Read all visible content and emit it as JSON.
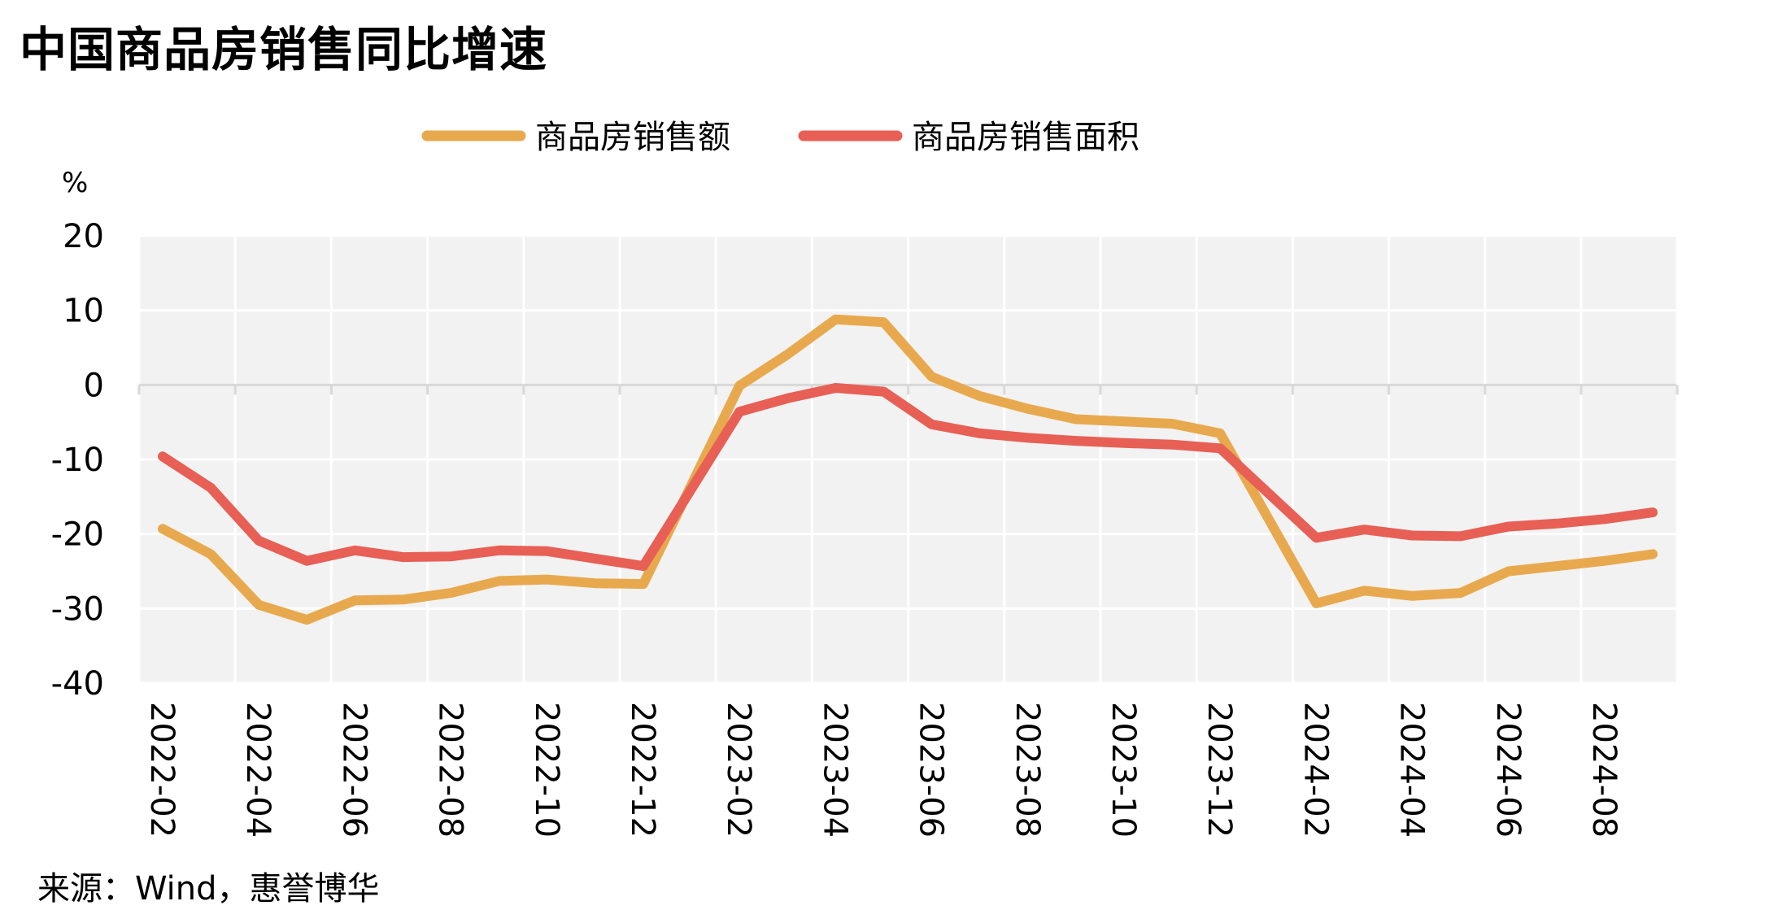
{
  "title": "中国商品房销售同比增速",
  "source": "来源：Wind，惠誉博华",
  "chart_data": {
    "type": "line",
    "unit_label": "%",
    "ylim": [
      -40,
      20
    ],
    "yticks": [
      20,
      10,
      0,
      -10,
      -20,
      -30,
      -40
    ],
    "x_tick_labels": [
      "2022-02",
      "2022-04",
      "2022-06",
      "2022-08",
      "2022-10",
      "2022-12",
      "2023-02",
      "2023-04",
      "2023-06",
      "2023-08",
      "2023-10",
      "2023-12",
      "2024-02",
      "2024-04",
      "2024-06",
      "2024-08"
    ],
    "x": [
      "2022-02",
      "2022-03",
      "2022-04",
      "2022-05",
      "2022-06",
      "2022-07",
      "2022-08",
      "2022-09",
      "2022-10",
      "2022-11",
      "2022-12",
      "2023-02",
      "2023-03",
      "2023-04",
      "2023-05",
      "2023-06",
      "2023-07",
      "2023-08",
      "2023-09",
      "2023-10",
      "2023-11",
      "2023-12",
      "2024-02",
      "2024-03",
      "2024-04",
      "2024-05",
      "2024-06",
      "2024-07",
      "2024-08",
      "2024-09"
    ],
    "series": [
      {
        "name": "商品房销售额",
        "color": "#E8A94E",
        "values": [
          -19.3,
          -22.7,
          -29.5,
          -31.5,
          -28.9,
          -28.8,
          -27.9,
          -26.3,
          -26.1,
          -26.6,
          -26.7,
          -0.1,
          4.1,
          8.8,
          8.4,
          1.1,
          -1.5,
          -3.2,
          -4.6,
          -4.9,
          -5.2,
          -6.5,
          -29.3,
          -27.6,
          -28.3,
          -27.9,
          -25.0,
          -24.3,
          -23.6,
          -22.7
        ]
      },
      {
        "name": "商品房销售面积",
        "color": "#E85F55",
        "values": [
          -9.6,
          -13.8,
          -20.9,
          -23.6,
          -22.2,
          -23.1,
          -23.0,
          -22.2,
          -22.3,
          -23.3,
          -24.3,
          -3.6,
          -1.8,
          -0.4,
          -0.9,
          -5.3,
          -6.5,
          -7.1,
          -7.5,
          -7.8,
          -8.0,
          -8.5,
          -20.5,
          -19.4,
          -20.2,
          -20.3,
          -19.0,
          -18.6,
          -18.0,
          -17.1
        ]
      }
    ],
    "legend_position": "top-center",
    "grid": true
  }
}
